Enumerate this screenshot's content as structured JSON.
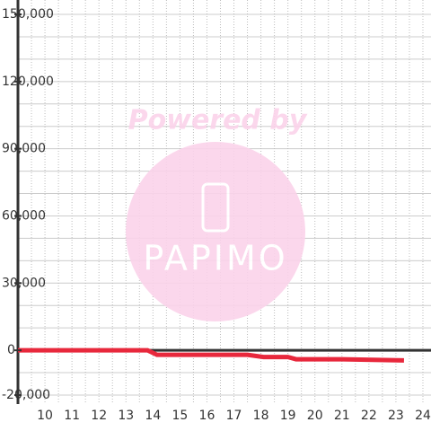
{
  "chart_data": {
    "type": "line",
    "watermark": {
      "title": "Powered by",
      "brand": "PAPIMO"
    },
    "xlim": [
      9,
      24.3
    ],
    "xticks": [
      10,
      11,
      12,
      13,
      14,
      15,
      16,
      17,
      18,
      19,
      20,
      21,
      22,
      23,
      24
    ],
    "x_minor_ticks": [
      9.5,
      10,
      10.5,
      11,
      11.5,
      12,
      12.5,
      13,
      13.5,
      14,
      14.5,
      15,
      15.5,
      16,
      16.5,
      17,
      17.5,
      18,
      18.5,
      19,
      19.5,
      20,
      20.5,
      21,
      21.5,
      22,
      22.5,
      23,
      23.5,
      24
    ],
    "ylim": [
      -20000,
      150000
    ],
    "yticks": [
      {
        "value": -20000,
        "label": "-20,000"
      },
      0,
      {
        "value": 30000,
        "label": "30,000"
      },
      {
        "value": 60000,
        "label": "60,000"
      },
      {
        "value": 90000,
        "label": "90,000"
      },
      {
        "value": 120000,
        "label": "120,000"
      },
      {
        "value": 150000,
        "label": "150,000"
      }
    ],
    "y_minor_ticks": [
      -20000,
      -10000,
      10000,
      20000,
      30000,
      40000,
      50000,
      60000,
      70000,
      80000,
      90000,
      100000,
      110000,
      120000,
      130000,
      140000,
      150000
    ],
    "grid": true,
    "series": [
      {
        "color": "#e8283c",
        "x": [
          9,
          13.8,
          14.15,
          17.5,
          18.1,
          19.0,
          19.3,
          21.0,
          23.3
        ],
        "values": [
          0,
          0,
          -2000,
          -2000,
          -3000,
          -3000,
          -4000,
          -4000,
          -4500
        ]
      }
    ]
  }
}
